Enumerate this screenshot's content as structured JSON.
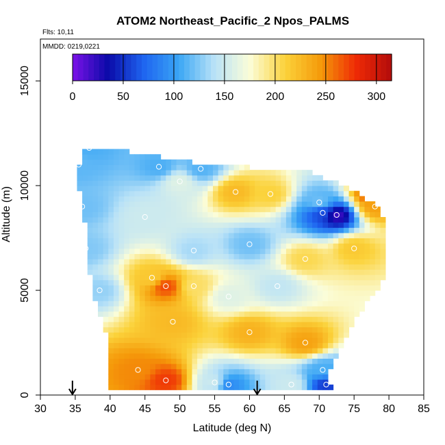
{
  "chart_data": {
    "type": "heatmap",
    "title": "ATOM2 Northeast_Pacific_2 Npos_PALMS",
    "annotations": [
      "Flts: 10,11",
      "MMDD: 0219,0221"
    ],
    "xlabel": "Latitude (deg N)",
    "ylabel": "Altitude (m)",
    "xlim": [
      30,
      85
    ],
    "ylim": [
      0,
      17000
    ],
    "x_ticks": [
      "30",
      "35",
      "40",
      "45",
      "50",
      "55",
      "60",
      "65",
      "70",
      "75",
      "80",
      "85"
    ],
    "y_ticks": [
      "0",
      "5000",
      "10000",
      "15000"
    ],
    "colorbar": {
      "range": [
        0,
        315
      ],
      "ticks": [
        "0",
        "50",
        "100",
        "150",
        "200",
        "250",
        "300"
      ],
      "colors": [
        "#7b12e8",
        "#0a0aa8",
        "#1e64f0",
        "#3aa6f5",
        "#b9e2f7",
        "#fbfdd8",
        "#fbd23a",
        "#f59a0a",
        "#ef2a05",
        "#b30c0c"
      ]
    },
    "arrows_at_latitude": [
      34.6,
      61.1
    ],
    "profile_bounds": [
      {
        "alt": 200,
        "lat_min": 40.0,
        "lat_max": 71.5
      },
      {
        "alt": 1000,
        "lat_min": 40.0,
        "lat_max": 71.0
      },
      {
        "alt": 2000,
        "lat_min": 39.8,
        "lat_max": 72.5
      },
      {
        "alt": 3000,
        "lat_min": 39.5,
        "lat_max": 74.0
      },
      {
        "alt": 4000,
        "lat_min": 38.5,
        "lat_max": 75.5
      },
      {
        "alt": 5000,
        "lat_min": 37.5,
        "lat_max": 78.0
      },
      {
        "alt": 6000,
        "lat_min": 37.0,
        "lat_max": 79.5
      },
      {
        "alt": 7000,
        "lat_min": 36.5,
        "lat_max": 79.5
      },
      {
        "alt": 8000,
        "lat_min": 36.5,
        "lat_max": 79.0
      },
      {
        "alt": 9000,
        "lat_min": 36.0,
        "lat_max": 78.5
      },
      {
        "alt": 10000,
        "lat_min": 35.5,
        "lat_max": 73.0
      },
      {
        "alt": 10700,
        "lat_min": 35.5,
        "lat_max": 68.0
      },
      {
        "alt": 11000,
        "lat_min": 35.5,
        "lat_max": 53.5
      },
      {
        "alt": 11800,
        "lat_min": 36.5,
        "lat_max": 39.5
      }
    ],
    "features": [
      {
        "lat": 35.5,
        "alt": 11000,
        "value": 115
      },
      {
        "lat": 47.0,
        "alt": 10900,
        "value": 110
      },
      {
        "lat": 53.0,
        "alt": 10800,
        "value": 112
      },
      {
        "lat": 36.0,
        "alt": 9000,
        "value": 120
      },
      {
        "lat": 36.5,
        "alt": 7000,
        "value": 125
      },
      {
        "lat": 38.5,
        "alt": 5000,
        "value": 130
      },
      {
        "lat": 37.0,
        "alt": 11800,
        "value": 110
      },
      {
        "lat": 50.0,
        "alt": 10200,
        "value": 160
      },
      {
        "lat": 58.0,
        "alt": 9700,
        "value": 225
      },
      {
        "lat": 63.0,
        "alt": 9600,
        "value": 210
      },
      {
        "lat": 70.0,
        "alt": 9200,
        "value": 120
      },
      {
        "lat": 72.5,
        "alt": 8600,
        "value": 20
      },
      {
        "lat": 70.5,
        "alt": 8700,
        "value": 60
      },
      {
        "lat": 77.5,
        "alt": 9600,
        "value": 270
      },
      {
        "lat": 78.0,
        "alt": 9000,
        "value": 240
      },
      {
        "lat": 45.0,
        "alt": 8500,
        "value": 150
      },
      {
        "lat": 60.0,
        "alt": 7200,
        "value": 120
      },
      {
        "lat": 52.0,
        "alt": 6900,
        "value": 135
      },
      {
        "lat": 68.0,
        "alt": 6500,
        "value": 205
      },
      {
        "lat": 75.0,
        "alt": 7000,
        "value": 215
      },
      {
        "lat": 46.0,
        "alt": 5600,
        "value": 215
      },
      {
        "lat": 48.0,
        "alt": 5200,
        "value": 270
      },
      {
        "lat": 52.0,
        "alt": 5200,
        "value": 200
      },
      {
        "lat": 57.0,
        "alt": 4700,
        "value": 160
      },
      {
        "lat": 64.0,
        "alt": 5200,
        "value": 145
      },
      {
        "lat": 49.0,
        "alt": 3500,
        "value": 225
      },
      {
        "lat": 60.0,
        "alt": 3000,
        "value": 230
      },
      {
        "lat": 68.0,
        "alt": 2500,
        "value": 240
      },
      {
        "lat": 44.0,
        "alt": 1200,
        "value": 250
      },
      {
        "lat": 48.0,
        "alt": 700,
        "value": 275
      },
      {
        "lat": 55.0,
        "alt": 600,
        "value": 150
      },
      {
        "lat": 57.0,
        "alt": 500,
        "value": 90
      },
      {
        "lat": 66.0,
        "alt": 500,
        "value": 150
      },
      {
        "lat": 71.0,
        "alt": 500,
        "value": 55
      },
      {
        "lat": 70.5,
        "alt": 1200,
        "value": 110
      }
    ],
    "grid": false,
    "legend": "top"
  }
}
